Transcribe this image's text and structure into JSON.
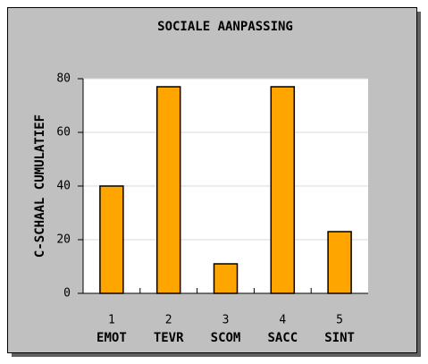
{
  "chart_data": {
    "type": "bar",
    "title": "SOCIALE AANPASSING",
    "y_label": "C-SCHAAL CUMULATIEF",
    "categories": [
      "1",
      "2",
      "3",
      "4",
      "5"
    ],
    "category_names": [
      "EMOT",
      "TEVR",
      "SCOM",
      "SACC",
      "SINT"
    ],
    "values": [
      40,
      77,
      11,
      77,
      23
    ],
    "color": "#ffa500",
    "ylim": [
      0,
      80
    ],
    "yticks": [
      0,
      20,
      40,
      60,
      80
    ],
    "grid": true
  }
}
